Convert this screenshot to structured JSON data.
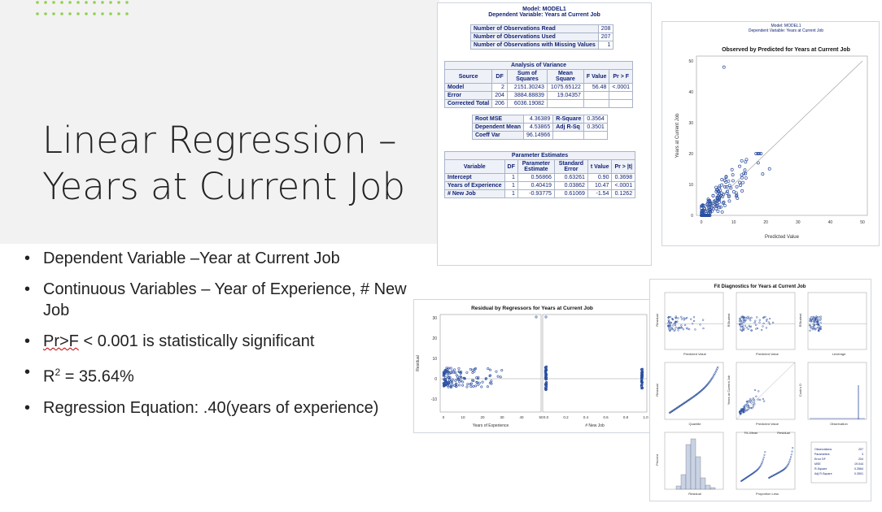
{
  "slide": {
    "title_line1": "Linear Regression –",
    "title_line2": "Years at Current Job",
    "bullets": {
      "b1": "Dependent Variable –Year at Current Job",
      "b2": "Continuous Variables – Year of Experience, # New Job",
      "b3_a": "Pr>F",
      "b3_b": " < 0.001 is statistically significant",
      "b4_a": "R",
      "b4_sup": "2",
      "b4_b": " = 35.64%",
      "b5": "Regression Equation: .40(years of experience)"
    },
    "accent_color": "#92d050"
  },
  "sas_output": {
    "model_header": "Model: MODEL1",
    "dep_header": "Dependent Variable: Years at Current Job",
    "obs": {
      "read_label": "Number of Observations Read",
      "read": "208",
      "used_label": "Number of Observations Used",
      "used": "207",
      "missing_label": "Number of Observations with Missing Values",
      "missing": "1"
    },
    "anova": {
      "title": "Analysis of Variance",
      "h_source": "Source",
      "h_df": "DF",
      "h_ss": "Sum of Squares",
      "h_ms": "Mean Square",
      "h_f": "F Value",
      "h_p": "Pr > F",
      "rows": [
        {
          "source": "Model",
          "df": "2",
          "ss": "2151.30243",
          "ms": "1075.65122",
          "f": "56.48",
          "p": "<.0001"
        },
        {
          "source": "Error",
          "df": "204",
          "ss": "3884.88839",
          "ms": "19.04357",
          "f": "",
          "p": ""
        },
        {
          "source": "Corrected Total",
          "df": "206",
          "ss": "6036.19082",
          "ms": "",
          "f": "",
          "p": ""
        }
      ]
    },
    "fit": {
      "rmse_label": "Root MSE",
      "rmse": "4.36389",
      "rsq_label": "R-Square",
      "rsq": "0.3564",
      "depmean_label": "Dependent Mean",
      "depmean": "4.53865",
      "adjrsq_label": "Adj R-Sq",
      "adjrsq": "0.3501",
      "cv_label": "Coeff Var",
      "cv": "96.14966"
    },
    "params": {
      "title": "Parameter Estimates",
      "h_var": "Variable",
      "h_df": "DF",
      "h_est": "Parameter Estimate",
      "h_se": "Standard Error",
      "h_t": "t Value",
      "h_p": "Pr > |t|",
      "rows": [
        {
          "var": "Intercept",
          "df": "1",
          "est": "0.56866",
          "se": "0.63261",
          "t": "0.90",
          "p": "0.3698"
        },
        {
          "var": "Years of Experience",
          "df": "1",
          "est": "0.40419",
          "se": "0.03862",
          "t": "10.47",
          "p": "<.0001"
        },
        {
          "var": "# New Job",
          "df": "1",
          "est": "-0.93775",
          "se": "0.61069",
          "t": "-1.54",
          "p": "0.1262"
        }
      ]
    }
  },
  "obs_pred_chart": {
    "model_header": "Model: MODEL1",
    "dep_header": "Dependent Variable: Years at Current Job",
    "title": "Observed by Predicted for Years at Current Job",
    "xlabel": "Predicted Value",
    "ylabel": "Years at Current Job",
    "xticks": [
      "0",
      "10",
      "20",
      "30",
      "40",
      "50"
    ],
    "yticks": [
      "0",
      "10",
      "20",
      "30",
      "40",
      "50"
    ]
  },
  "resid_chart": {
    "title": "Residual by Regressors for Years at Current Job",
    "ylabel": "Residual",
    "xlabel1": "Years of Experience",
    "xlabel2": "# New Job",
    "yticks": [
      "-10",
      "0",
      "10",
      "20",
      "30"
    ],
    "xticks1": [
      "0",
      "10",
      "20",
      "30",
      "40",
      "50"
    ],
    "xticks2": [
      "0.0",
      "0.2",
      "0.4",
      "0.6",
      "0.8",
      "1.0"
    ]
  },
  "diag_chart": {
    "title": "Fit Diagnostics for Years at Current Job",
    "lab_resid": "Residual",
    "lab_rstudent": "RStudent",
    "lab_pred": "Predicted Value",
    "lab_leverage": "Leverage",
    "lab_quantile": "Quantile",
    "lab_yacj": "Years at Current Job",
    "lab_cooks": "Cook's D",
    "lab_obs": "Observation",
    "lab_percent": "Percent",
    "lab_fitmean": "Fit–Mean",
    "lab_residual2": "Residual",
    "lab_proportion": "Proportion Less",
    "stats": [
      {
        "k": "Observations",
        "v": "207"
      },
      {
        "k": "Parameters",
        "v": "3"
      },
      {
        "k": "Error DF",
        "v": "204"
      },
      {
        "k": "MSE",
        "v": "19.044"
      },
      {
        "k": "R-Square",
        "v": "0.3564"
      },
      {
        "k": "Adj R-Square",
        "v": "0.3501"
      }
    ]
  }
}
